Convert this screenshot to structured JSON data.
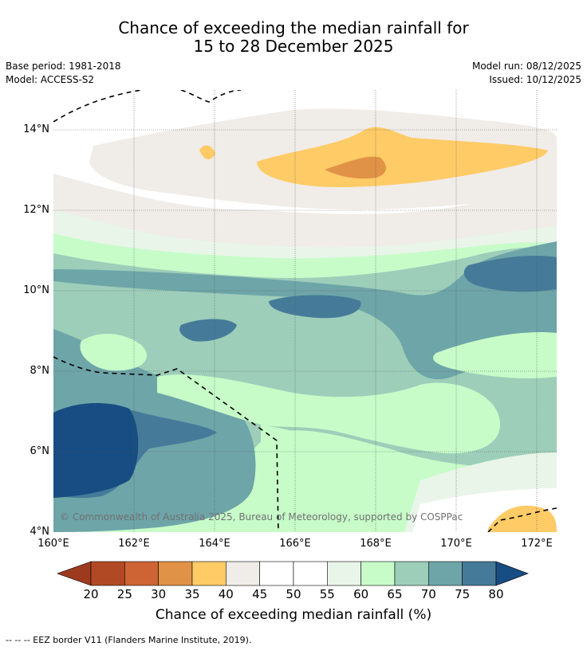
{
  "title": {
    "line1": "Chance of exceeding the median rainfall for",
    "line2": "15 to 28 December 2025"
  },
  "meta": {
    "base_period": "Base period: 1981-2018",
    "model": "Model: ACCESS-S2",
    "model_run": "Model run: 08/12/2025",
    "issued": "Issued: 10/12/2025"
  },
  "map": {
    "lat_labels": [
      "14°N",
      "12°N",
      "10°N",
      "8°N",
      "6°N",
      "4°N"
    ],
    "lon_labels": [
      "160°E",
      "162°E",
      "164°E",
      "166°E",
      "168°E",
      "170°E",
      "172°E"
    ],
    "copyright": "© Commonwealth of Australia 2025, Bureau of Meteorology, supported by COSPPac"
  },
  "colorbar": {
    "ticks": [
      "20",
      "25",
      "30",
      "35",
      "40",
      "45",
      "50",
      "55",
      "60",
      "65",
      "70",
      "75",
      "80"
    ],
    "colors": [
      "#b14a24",
      "#ce6433",
      "#e09246",
      "#fecb66",
      "#f0ece8",
      "#ffffff",
      "#ffffff",
      "#e9f5e8",
      "#c7fcc9",
      "#9dceb9",
      "#6ea5a8",
      "#457b99"
    ],
    "low_color": "#9d3a1e",
    "high_color": "#174d82",
    "label": "Chance of exceeding median rainfall (%)"
  },
  "footer": "--  --  -- EEZ border V11 (Flanders Marine Institute, 2019)."
}
